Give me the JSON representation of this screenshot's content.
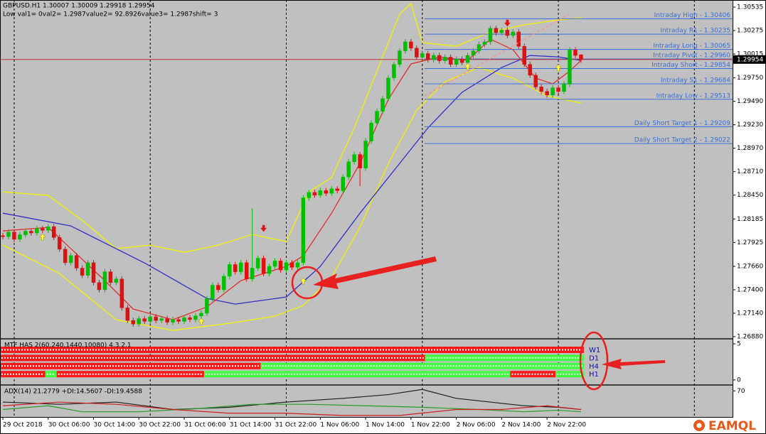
{
  "chart_data": [
    {
      "type": "candlestick",
      "title": "GBPUSD.H1  1.30007 1.30009 1.29918 1.29954",
      "subtitle": "Low val1= 0val2= 1.2987value2= 92.8926value3= 1.2987shift= 3",
      "categories": [
        "29 Oct 2018",
        null,
        null,
        null,
        null,
        null,
        null,
        null,
        "30 Oct 06:00",
        null,
        null,
        null,
        null,
        null,
        null,
        null,
        "30 Oct 14:00",
        null,
        null,
        null,
        null,
        null,
        null,
        null,
        "30 Oct 22:00",
        null,
        null,
        null,
        null,
        null,
        null,
        null,
        "31 Oct 06:00",
        null,
        null,
        null,
        null,
        null,
        null,
        null,
        "31 Oct 14:00",
        null,
        null,
        null,
        null,
        null,
        null,
        null,
        "31 Oct 22:00",
        null,
        null,
        null,
        null,
        null,
        null,
        null,
        "1 Nov 06:00",
        null,
        null,
        null,
        null,
        null,
        null,
        null,
        "1 Nov 14:00",
        null,
        null,
        null,
        null,
        null,
        null,
        null,
        "1 Nov 22:00",
        null,
        null,
        null,
        null,
        null,
        null,
        null,
        "2 Nov 06:00",
        null,
        null,
        null,
        null,
        null,
        null,
        null,
        "2 Nov 14:00",
        null,
        null,
        null,
        null,
        null,
        null,
        null,
        "2 Nov 22:00",
        null,
        null,
        null,
        null,
        null,
        null
      ],
      "open": [
        1.28,
        1.2799,
        1.2804,
        1.2796,
        1.2801,
        1.2805,
        1.2803,
        1.2808,
        1.2806,
        1.281,
        1.2798,
        1.2785,
        1.277,
        1.2778,
        1.2764,
        1.2756,
        1.277,
        1.2748,
        1.274,
        1.276,
        1.2748,
        1.2752,
        1.272,
        1.2706,
        1.2702,
        1.2708,
        1.2705,
        1.271,
        1.2706,
        1.2708,
        1.2704,
        1.2707,
        1.2705,
        1.2709,
        1.2707,
        1.2711,
        1.2714,
        1.273,
        1.2745,
        1.274,
        1.2755,
        1.2768,
        1.276,
        1.277,
        1.2752,
        1.2764,
        1.2775,
        1.2758,
        1.2766,
        1.2772,
        1.2762,
        1.277,
        1.2765,
        1.277,
        1.2842,
        1.2848,
        1.2845,
        1.285,
        1.2847,
        1.2852,
        1.285,
        1.2865,
        1.2882,
        1.289,
        1.2875,
        1.2905,
        1.2925,
        1.2938,
        1.2952,
        1.2975,
        1.299,
        1.3005,
        1.3015,
        1.3008,
        1.2998,
        1.3002,
        1.2995,
        1.3,
        1.2994,
        1.2998,
        1.299,
        1.2996,
        1.2992,
        1.3,
        1.3005,
        1.3012,
        1.3015,
        1.303,
        1.3025,
        1.3028,
        1.3022,
        1.3026,
        1.301,
        1.299,
        1.2978,
        1.2965,
        1.296,
        1.2956,
        1.2964,
        1.296,
        1.2968,
        1.3006,
        1.30007
      ],
      "high": [
        1.2803,
        1.2807,
        1.2807,
        1.2804,
        1.2808,
        1.2808,
        1.2811,
        1.2811,
        1.2813,
        1.2813,
        1.2801,
        1.2788,
        1.2781,
        1.2781,
        1.2767,
        1.2773,
        1.2773,
        1.2751,
        1.2763,
        1.2763,
        1.2755,
        1.2755,
        1.2723,
        1.2709,
        1.2711,
        1.2711,
        1.2713,
        1.2713,
        1.2711,
        1.2711,
        1.271,
        1.271,
        1.2712,
        1.2712,
        1.2714,
        1.2717,
        1.2733,
        1.2748,
        1.2748,
        1.2758,
        1.2771,
        1.2771,
        1.2773,
        1.2773,
        1.283,
        1.2778,
        1.2778,
        1.2769,
        1.2775,
        1.2775,
        1.2773,
        1.2773,
        1.2773,
        1.2845,
        1.2851,
        1.2851,
        1.2853,
        1.2853,
        1.2855,
        1.2855,
        1.2868,
        1.2885,
        1.2893,
        1.2893,
        1.2908,
        1.2928,
        1.2941,
        1.2955,
        1.2978,
        1.2993,
        1.3008,
        1.3018,
        1.3018,
        1.3011,
        1.3005,
        1.3005,
        1.3003,
        1.3003,
        1.3001,
        1.3001,
        1.2999,
        1.2999,
        1.3003,
        1.3008,
        1.3015,
        1.3018,
        1.3033,
        1.3033,
        1.3031,
        1.3031,
        1.3029,
        1.3029,
        1.3013,
        1.2993,
        1.2981,
        1.2968,
        1.2963,
        1.2967,
        1.2967,
        1.2971,
        1.3009,
        1.3009,
        1.30009
      ],
      "low": [
        1.2796,
        1.2796,
        1.2793,
        1.2793,
        1.2798,
        1.28,
        1.28,
        1.2803,
        1.2803,
        1.2795,
        1.2782,
        1.2767,
        1.2767,
        1.2761,
        1.2753,
        1.2753,
        1.2745,
        1.2737,
        1.2737,
        1.2745,
        1.2745,
        1.2717,
        1.2703,
        1.2699,
        1.2699,
        1.2702,
        1.2702,
        1.2703,
        1.2703,
        1.2701,
        1.2701,
        1.2702,
        1.2702,
        1.2704,
        1.2704,
        1.2708,
        1.2711,
        1.2727,
        1.2737,
        1.2737,
        1.2752,
        1.2757,
        1.2757,
        1.2749,
        1.2749,
        1.2761,
        1.2755,
        1.2755,
        1.2763,
        1.2759,
        1.2759,
        1.2762,
        1.2762,
        1.2767,
        1.2839,
        1.2842,
        1.2842,
        1.2844,
        1.2844,
        1.2847,
        1.2847,
        1.2862,
        1.2879,
        1.2855,
        1.2872,
        1.2902,
        1.2922,
        1.2935,
        1.2949,
        1.2972,
        1.2987,
        1.3002,
        1.3005,
        1.2995,
        1.2995,
        1.2992,
        1.2992,
        1.2991,
        1.2991,
        1.2987,
        1.2987,
        1.2989,
        1.2989,
        1.2997,
        1.3002,
        1.3009,
        1.3012,
        1.3022,
        1.3022,
        1.3019,
        1.3019,
        1.3007,
        1.2987,
        1.2975,
        1.2962,
        1.2957,
        1.2953,
        1.2953,
        1.2957,
        1.2957,
        1.2965,
        1.2997,
        1.29918
      ],
      "close": [
        1.2799,
        1.2804,
        1.2796,
        1.2801,
        1.2805,
        1.2803,
        1.2808,
        1.2806,
        1.281,
        1.2798,
        1.2785,
        1.277,
        1.2778,
        1.2764,
        1.2756,
        1.277,
        1.2748,
        1.274,
        1.276,
        1.2748,
        1.2752,
        1.272,
        1.2706,
        1.2702,
        1.2708,
        1.2705,
        1.271,
        1.2706,
        1.2708,
        1.2704,
        1.2707,
        1.2705,
        1.2709,
        1.2707,
        1.2711,
        1.2714,
        1.273,
        1.2745,
        1.274,
        1.2755,
        1.2768,
        1.276,
        1.277,
        1.2752,
        1.2764,
        1.2775,
        1.2758,
        1.2766,
        1.2772,
        1.2762,
        1.277,
        1.2765,
        1.277,
        1.2842,
        1.2848,
        1.2845,
        1.285,
        1.2847,
        1.2852,
        1.285,
        1.2865,
        1.2882,
        1.289,
        1.2875,
        1.2905,
        1.2925,
        1.2938,
        1.2952,
        1.2975,
        1.299,
        1.3005,
        1.3015,
        1.3008,
        1.2998,
        1.3002,
        1.2995,
        1.3,
        1.2994,
        1.2998,
        1.299,
        1.2996,
        1.2992,
        1.3,
        1.3005,
        1.3012,
        1.3015,
        1.303,
        1.3025,
        1.3028,
        1.3022,
        1.3026,
        1.301,
        1.299,
        1.2978,
        1.2965,
        1.296,
        1.2956,
        1.2964,
        1.296,
        1.2968,
        1.3006,
        1.3,
        1.29954
      ],
      "up_color": "#00c000",
      "down_color": "#e01010",
      "ylim": [
        1.26864,
        1.30614
      ],
      "yticks": [
        1.30535,
        1.30275,
        1.30015,
        {
          "value": 1.2975,
          "label": "1.29750"
        },
        {
          "value": 1.2949,
          "label": "1.29490"
        },
        {
          "value": 1.2923,
          "label": "1.29230"
        },
        {
          "value": 1.2897,
          "label": "1.28970"
        },
        {
          "value": 1.2871,
          "label": "1.28710"
        },
        {
          "value": 1.2845,
          "label": "1.28450"
        },
        1.28185,
        1.27925,
        {
          "value": 1.2766,
          "label": "1.27660"
        },
        {
          "value": 1.274,
          "label": "1.27400"
        },
        {
          "value": 1.2714,
          "label": "1.27140"
        },
        {
          "value": 1.2688,
          "label": "1.26880"
        }
      ],
      "grid": false,
      "last_price": 1.29954,
      "last_price_color": "#c03030",
      "lines": [
        {
          "color": "#f0f000",
          "x": [
            0,
            8,
            14,
            20,
            26,
            32,
            38,
            44,
            50,
            54,
            58,
            62,
            66,
            70,
            72,
            74,
            80,
            86,
            92,
            98,
            102
          ],
          "values": [
            1.28486,
            1.28447,
            1.28171,
            1.27856,
            1.27895,
            1.27816,
            1.27895,
            1.28013,
            1.27935,
            1.28486,
            1.28644,
            1.29196,
            1.29826,
            1.30456,
            1.30574,
            1.30141,
            1.30102,
            1.30259,
            1.30338,
            1.30393,
            1.30417
          ]
        },
        {
          "color": "#f0f000",
          "x": [
            0,
            10,
            20,
            30,
            40,
            48,
            53,
            58,
            63,
            68,
            73,
            78,
            84,
            90,
            96,
            102
          ],
          "values": [
            1.27895,
            1.2758,
            1.27068,
            1.2695,
            1.27029,
            1.27107,
            1.27225,
            1.27541,
            1.28092,
            1.28801,
            1.29392,
            1.29708,
            1.29865,
            1.29747,
            1.2955,
            1.29471
          ]
        },
        {
          "color": "#3030c8",
          "x": [
            0,
            12,
            25,
            36,
            41,
            50,
            56,
            63,
            69,
            75,
            81,
            88,
            93,
            98,
            102
          ],
          "values": [
            1.2825,
            1.28108,
            1.27698,
            1.27304,
            1.27241,
            1.2732,
            1.27659,
            1.2825,
            1.28723,
            1.29196,
            1.2959,
            1.29865,
            1.29999,
            1.29983,
            1.29944
          ]
        },
        {
          "color": "#e03030",
          "x": [
            0,
            8,
            12,
            18,
            23,
            30,
            36,
            42,
            50,
            53,
            58,
            63,
            68,
            72,
            77,
            82,
            86,
            90,
            94,
            97,
            100,
            102
          ],
          "values": [
            1.28053,
            1.28092,
            1.27856,
            1.27501,
            1.27186,
            1.27068,
            1.2721,
            1.27501,
            1.27659,
            1.27777,
            1.2825,
            1.28801,
            1.29511,
            1.29905,
            1.29983,
            1.29944,
            1.3018,
            1.30062,
            1.29747,
            1.29684,
            1.29826,
            1.29944
          ]
        }
      ],
      "levels": [
        {
          "label": "Intraday High - 1.30406",
          "value": 1.30406
        },
        {
          "label": "Intraday R1 - 1.30235",
          "value": 1.30235
        },
        {
          "label": "Intraday Long - 1.30065",
          "value": 1.30065
        },
        {
          "label": "Intraday Pivot - 1.29960",
          "value": 1.2996
        },
        {
          "label": "Intraday Short - 1.29854",
          "value": 1.29854
        },
        {
          "label": "Intraday S1 - 1.29684",
          "value": 1.29684
        },
        {
          "label": "Intraday Low - 1.29513",
          "value": 1.29513
        },
        {
          "label": "Daily Short Target 1 - 1.29209",
          "value": 1.29209
        },
        {
          "label": "Daily Short Target 2 - 1.29022",
          "value": 1.29022
        }
      ],
      "level_color": "#3a6fd8",
      "buy_signals": {
        "color": "#ffff40",
        "x": [
          7,
          35,
          53,
          82,
          98
        ],
        "values": [
          1.27991,
          1.27053,
          1.27502,
          1.29881,
          1.29866
        ]
      },
      "sell_signals": {
        "color": "#e01010",
        "x": [
          46,
          89
        ],
        "values": [
          1.28077,
          1.30354
        ]
      }
    },
    {
      "type": "signal-bars",
      "title": "MTF HAS 2(60,240,1440,10080) 4.3.2.1",
      "ylim": [
        -0.6,
        5.6
      ],
      "yticks": [
        5,
        0
      ],
      "label_color": "#1010c0",
      "rows": [
        {
          "label": "W1",
          "runs": [
            {
              "color": "#ff1818",
              "count": 103
            }
          ]
        },
        {
          "label": "D1",
          "runs": [
            {
              "color": "#ff1818",
              "count": 75
            },
            {
              "color": "#40ff40",
              "count": 28
            }
          ]
        },
        {
          "label": "H4",
          "runs": [
            {
              "color": "#ff1818",
              "count": 46
            },
            {
              "color": "#40ff40",
              "count": 57
            }
          ]
        },
        {
          "label": "H1",
          "runs": [
            {
              "color": "#ff1818",
              "count": 8
            },
            {
              "color": "#40ff40",
              "count": 2
            },
            {
              "color": "#ff1818",
              "count": 26
            },
            {
              "color": "#40ff40",
              "count": 54
            },
            {
              "color": "#ff1818",
              "count": 8
            },
            {
              "color": "#40ff40",
              "count": 5
            }
          ]
        }
      ]
    },
    {
      "type": "line",
      "title": "ADX(14) 21.2779 +DI:14.5607 -DI:19.4588",
      "ylim": [
        0,
        84
      ],
      "yticks": [
        70
      ],
      "series": [
        {
          "color": "#202020",
          "x": [
            0,
            10,
            20,
            30,
            40,
            50,
            60,
            68,
            74,
            80,
            86,
            92,
            98,
            102
          ],
          "values": [
            40,
            34,
            40,
            20,
            26,
            40,
            50,
            60,
            74,
            50,
            40,
            30,
            26,
            20
          ]
        },
        {
          "color": "#2a9a2a",
          "x": [
            0,
            8,
            14,
            24,
            34,
            44,
            54,
            64,
            74,
            84,
            92,
            98,
            102
          ],
          "values": [
            20,
            30,
            14,
            14,
            22,
            34,
            34,
            30,
            26,
            20,
            14,
            18,
            14
          ]
        },
        {
          "color": "#d02020",
          "x": [
            0,
            10,
            20,
            30,
            40,
            50,
            60,
            70,
            80,
            88,
            96,
            102
          ],
          "values": [
            30,
            40,
            34,
            20,
            10,
            10,
            4,
            4,
            20,
            20,
            30,
            20
          ]
        }
      ]
    }
  ],
  "brand": "EAMQL"
}
